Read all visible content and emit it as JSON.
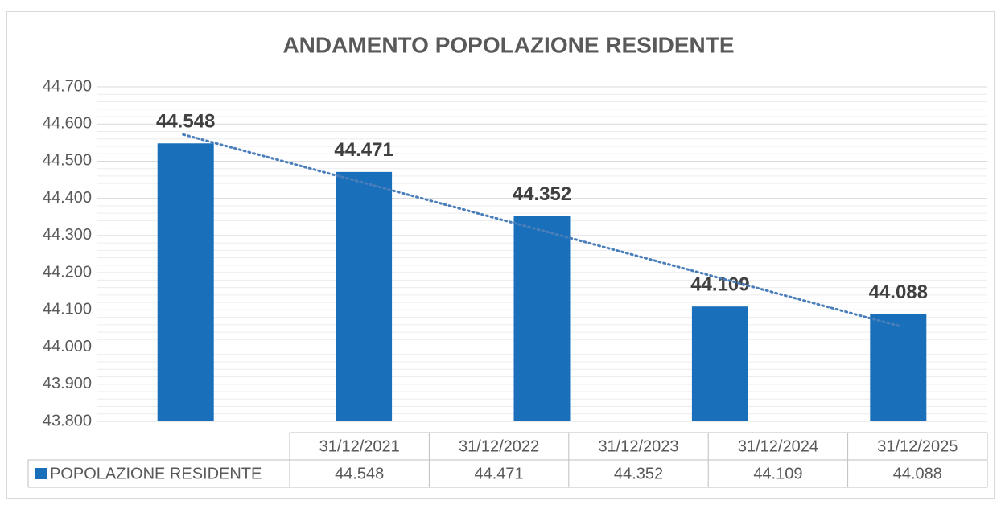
{
  "chart_data": {
    "type": "bar",
    "title": "ANDAMENTO POPOLAZIONE RESIDENTE",
    "categories": [
      "31/12/2021",
      "31/12/2022",
      "31/12/2023",
      "31/12/2024",
      "31/12/2025"
    ],
    "series": [
      {
        "name": "POPOLAZIONE RESIDENTE",
        "color": "#1a6fba",
        "values": [
          44548,
          44471,
          44352,
          44109,
          44088
        ],
        "value_labels": [
          "44.548",
          "44.471",
          "44.352",
          "44.109",
          "44.088"
        ]
      }
    ],
    "ylim": [
      43800,
      44700
    ],
    "yticks": [
      {
        "value": 43800,
        "label": "43.800"
      },
      {
        "value": 43900,
        "label": "43.900"
      },
      {
        "value": 44000,
        "label": "44.000"
      },
      {
        "value": 44100,
        "label": "44.100"
      },
      {
        "value": 44200,
        "label": "44.200"
      },
      {
        "value": 44300,
        "label": "44.300"
      },
      {
        "value": 44400,
        "label": "44.400"
      },
      {
        "value": 44500,
        "label": "44.500"
      },
      {
        "value": 44600,
        "label": "44.600"
      },
      {
        "value": 44700,
        "label": "44.700"
      }
    ],
    "grid": true,
    "minor_grid": true,
    "trendline": "linear",
    "data_table": true
  }
}
